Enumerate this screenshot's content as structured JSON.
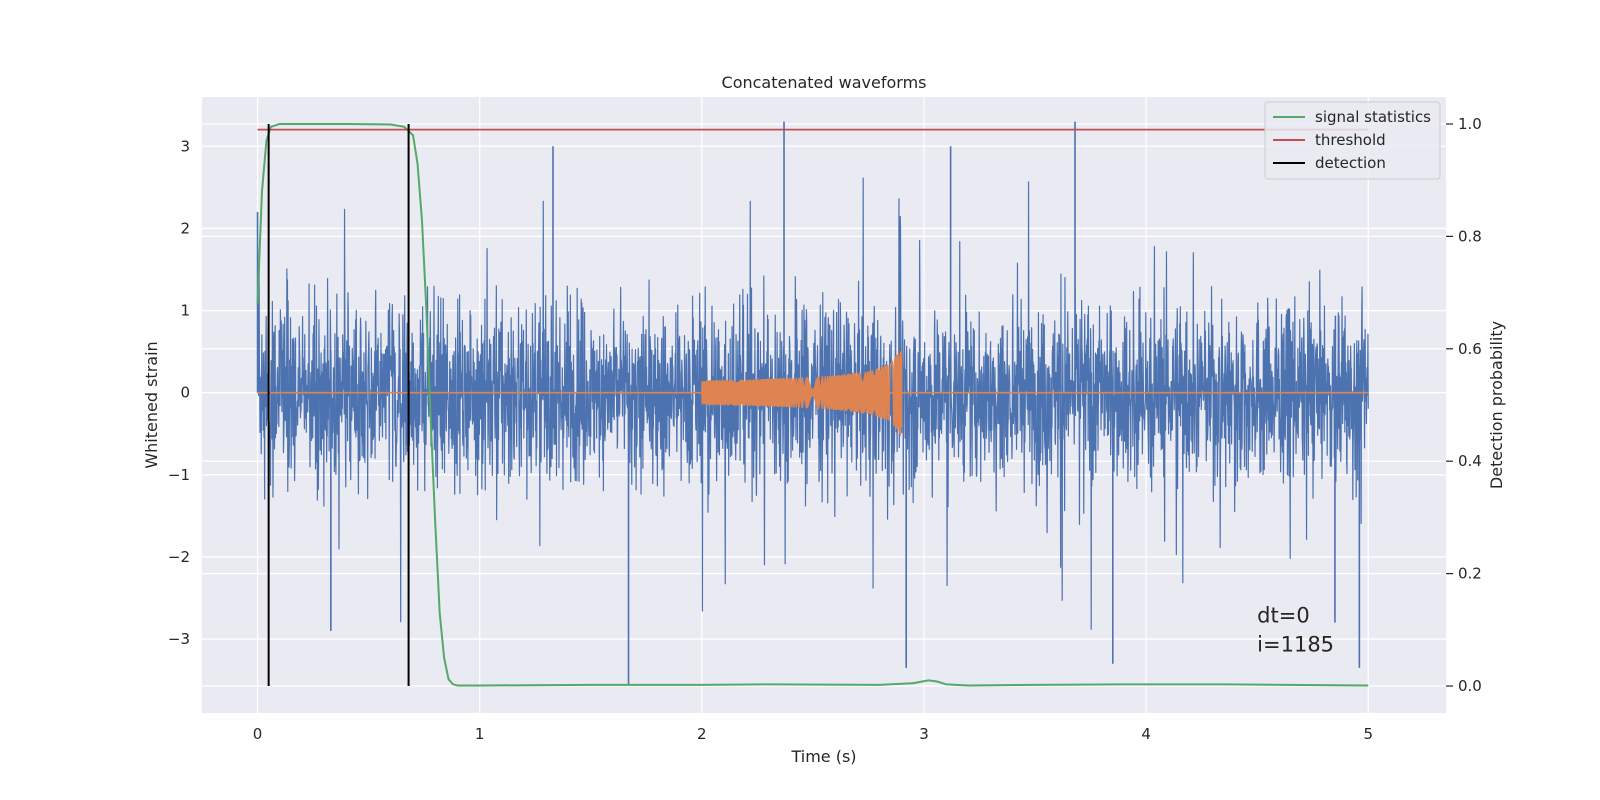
{
  "chart_data": {
    "type": "line",
    "title": "Concatenated waveforms",
    "xlabel": "Time (s)",
    "ylabel": "Whitened strain",
    "y2label": "Detection probability",
    "xlim": [
      -0.25,
      5.35
    ],
    "ylim": [
      -3.9,
      3.6
    ],
    "y2lim": [
      -0.048,
      1.048
    ],
    "x_ticks": [
      0,
      1,
      2,
      3,
      4,
      5
    ],
    "x_tick_labels": [
      "0",
      "1",
      "2",
      "3",
      "4",
      "5"
    ],
    "y_ticks": [
      -3,
      -2,
      -1,
      0,
      1,
      2,
      3
    ],
    "y_tick_labels": [
      "−3",
      "−2",
      "−1",
      "0",
      "1",
      "2",
      "3"
    ],
    "y2_ticks": [
      0.0,
      0.2,
      0.4,
      0.6,
      0.8,
      1.0
    ],
    "y2_tick_labels": [
      "0.0",
      "0.2",
      "0.4",
      "0.6",
      "0.8",
      "1.0"
    ],
    "grid": true,
    "legend_position": "top-right",
    "series": [
      {
        "kind": "strain-noise",
        "axis": "left",
        "color": "#4c72b0",
        "x_range": [
          0,
          5
        ],
        "typical_amplitude": [
          -1.3,
          1.3
        ],
        "peak_values": [
          {
            "x": 0.0,
            "y": 2.2
          },
          {
            "x": 0.33,
            "y": -2.9
          },
          {
            "x": 1.33,
            "y": 3.0
          },
          {
            "x": 1.67,
            "y": -3.55
          },
          {
            "x": 2.37,
            "y": 3.3
          },
          {
            "x": 2.92,
            "y": -3.35
          },
          {
            "x": 3.12,
            "y": 3.0
          },
          {
            "x": 3.68,
            "y": 3.3
          },
          {
            "x": 3.85,
            "y": -3.3
          },
          {
            "x": 4.85,
            "y": -2.8
          },
          {
            "x": 4.96,
            "y": -3.35
          }
        ]
      },
      {
        "kind": "chirp",
        "axis": "left",
        "color": "#dd8452",
        "x": [
          2.0,
          2.2,
          2.4,
          2.6,
          2.75,
          2.85,
          2.9,
          2.91,
          3.0,
          5.0
        ],
        "envelope": [
          0.15,
          0.16,
          0.18,
          0.21,
          0.26,
          0.35,
          0.55,
          0.0,
          0.0,
          0.0
        ]
      },
      {
        "name": "signal statistics",
        "axis": "right",
        "color": "#55a868",
        "x": [
          0,
          0.02,
          0.04,
          0.06,
          0.1,
          0.2,
          0.4,
          0.6,
          0.66,
          0.7,
          0.72,
          0.74,
          0.76,
          0.78,
          0.8,
          0.82,
          0.84,
          0.86,
          0.88,
          0.9,
          1.0,
          1.5,
          2.0,
          2.3,
          2.8,
          2.95,
          3.02,
          3.06,
          3.1,
          3.2,
          3.5,
          3.9,
          4.35,
          5.0
        ],
        "y": [
          0.68,
          0.88,
          0.97,
          0.995,
          1.0,
          1.0,
          1.0,
          0.999,
          0.995,
          0.98,
          0.93,
          0.83,
          0.67,
          0.47,
          0.29,
          0.13,
          0.05,
          0.012,
          0.003,
          0.001,
          0.001,
          0.002,
          0.002,
          0.003,
          0.002,
          0.005,
          0.01,
          0.008,
          0.003,
          0.001,
          0.002,
          0.003,
          0.003,
          0.001
        ]
      },
      {
        "name": "threshold",
        "axis": "right",
        "color": "#c44e52",
        "x": [
          0,
          5
        ],
        "y": [
          0.99,
          0.99
        ]
      },
      {
        "name": "detection",
        "axis": "right",
        "color": "#000000",
        "x_positions": [
          0.05,
          0.68
        ],
        "y_range": [
          0,
          1
        ]
      }
    ],
    "annotations": [
      {
        "text": "dt=0",
        "x": 4.5,
        "y": -2.8
      },
      {
        "text": "i=1185",
        "x": 4.5,
        "y": -3.15
      }
    ]
  }
}
